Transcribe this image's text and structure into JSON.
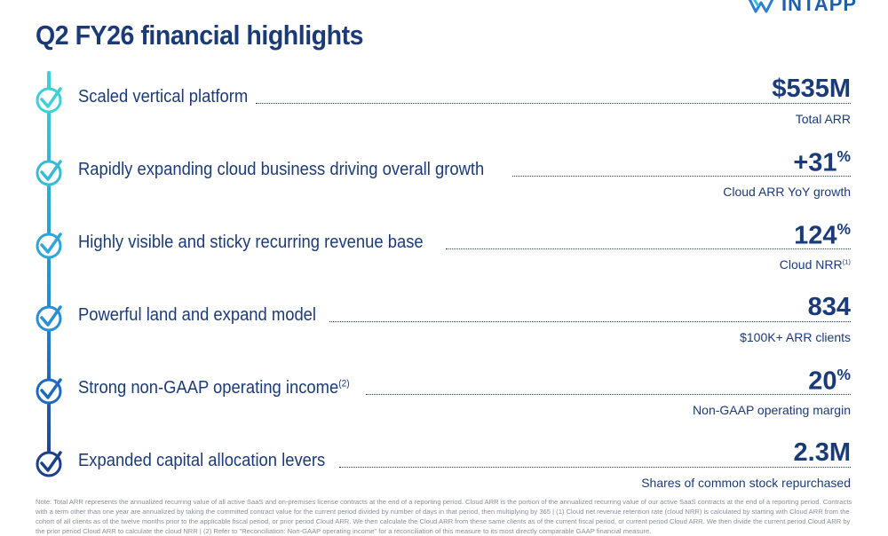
{
  "header": {
    "title": "Q2 FY26 financial highlights",
    "logo": "INTAPP"
  },
  "items": [
    {
      "label": "Scaled vertical platform",
      "value": "$535M",
      "caption": "Total ARR"
    },
    {
      "label": "Rapidly expanding cloud business driving overall growth",
      "value": "+31",
      "value_sup": "%",
      "caption": "Cloud ARR YoY growth"
    },
    {
      "label": "Highly visible and sticky recurring revenue base",
      "value": "124",
      "value_sup": "%",
      "caption": "Cloud NRR",
      "caption_sup": "(1)"
    },
    {
      "label": "Powerful land and expand model",
      "value": "834",
      "caption": "$100K+ ARR clients"
    },
    {
      "label": "Strong non-GAAP operating income",
      "label_sup": "(2)",
      "value": "20",
      "value_sup": "%",
      "caption": "Non-GAAP operating margin"
    },
    {
      "label": "Expanded capital allocation levers",
      "value": "2.3M",
      "caption": "Shares of common stock repurchased"
    }
  ],
  "footnote": "Note: Total ARR represents the annualized recurring value of all active SaaS and on-premises license contracts at the end of a reporting period. Cloud ARR is the portion of the annualized recurring value of our active SaaS contracts at the end of a reporting period. Contracts with a term other than one year are annualized by taking the committed contract value for the current period divided by number of days in that period, then multiplying by 365 | (1) Cloud net revenue retention rate (cloud NRR) is calculated by starting with Cloud ARR from the cohort of all clients as of the twelve months prior to the applicable fiscal period, or prior period Cloud ARR. We then calculate the Cloud ARR from these same clients as of the current fiscal period, or current period Cloud ARR. We then divide the current period Cloud ARR by the prior period Cloud ARR to calculate the cloud NRR | (2) Refer to \"Reconciliation: Non-GAAP operating income\" for a reconciliation of this measure to its most directly comparable GAAP financial measure."
}
